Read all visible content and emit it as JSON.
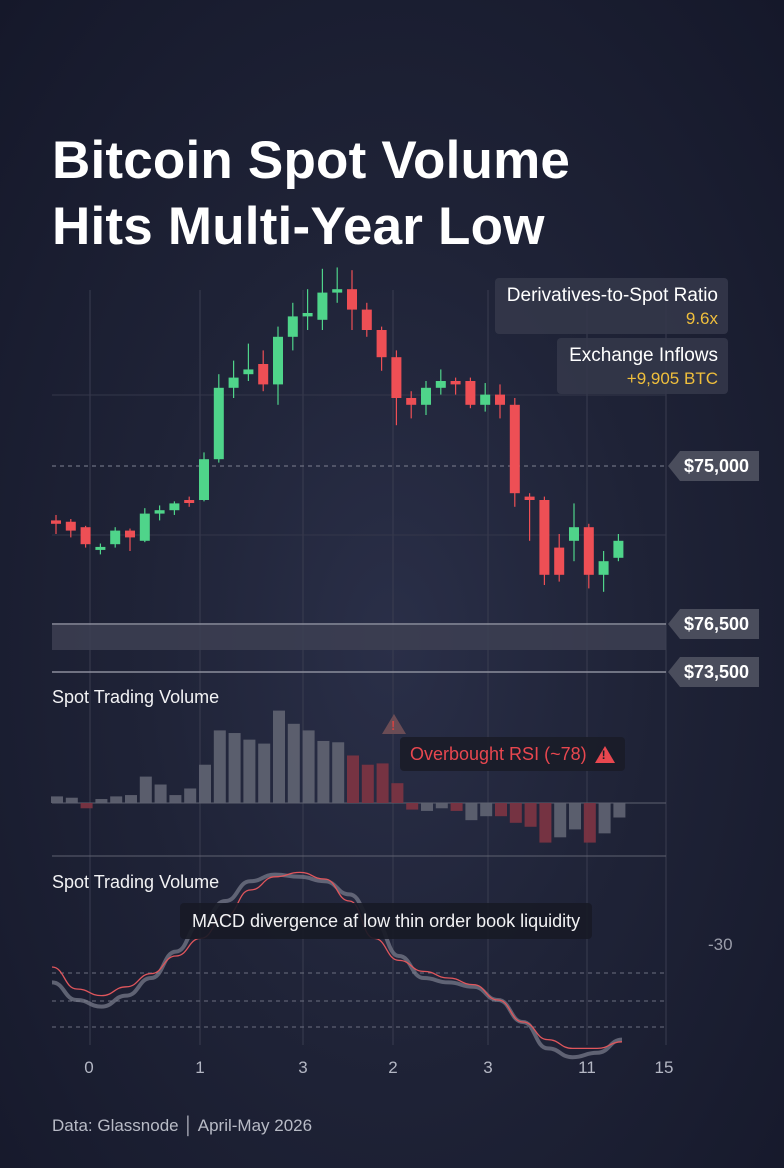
{
  "title_line1": "Bitcoin Spot Volume",
  "title_line2": "Hits Multi-Year Low",
  "stats": [
    {
      "label": "Derivatives-to-Spot Ratio",
      "value": "9.6x"
    },
    {
      "label": "Exchange Inflows",
      "value": "+9,905 BTC"
    }
  ],
  "price_labels": [
    "$75,000",
    "$76,500",
    "$73,500"
  ],
  "volume_label": "Spot Trading Volume",
  "rsi_callout": "Overbought RSI (~78)",
  "macd_label": "Spot Trading Volume",
  "macd_callout": "MACD divergence af low thin order book liquidity",
  "macd_side_label": "-30",
  "x_ticks": [
    "0",
    "1",
    "3",
    "2",
    "3",
    "11",
    "15"
  ],
  "footer": "Data: Glassnode │ April-May 2026",
  "colors": {
    "up": "#4fd48a",
    "down": "#ee4f55",
    "accent_yellow": "#f0bf3c",
    "volume_gray": "#5e6170",
    "volume_red": "#7a3442"
  },
  "chart_data": [
    {
      "type": "candlestick",
      "title": "Bitcoin Spot Volume Hits Multi-Year Low",
      "price_levels": {
        "high_label": "$75,000",
        "range_band_label": "$76,500",
        "low_label": "$73,500"
      },
      "candles": [
        {
          "o": 74.2,
          "c": 74.15,
          "h": 74.28,
          "l": 74.0
        },
        {
          "o": 74.18,
          "c": 74.05,
          "h": 74.22,
          "l": 73.95
        },
        {
          "o": 74.1,
          "c": 73.85,
          "h": 74.12,
          "l": 73.8
        },
        {
          "o": 73.8,
          "c": 73.81,
          "h": 73.86,
          "l": 73.7
        },
        {
          "o": 73.85,
          "c": 74.05,
          "h": 74.1,
          "l": 73.8
        },
        {
          "o": 74.05,
          "c": 73.95,
          "h": 74.08,
          "l": 73.75
        },
        {
          "o": 73.9,
          "c": 74.3,
          "h": 74.38,
          "l": 73.88
        },
        {
          "o": 74.3,
          "c": 74.35,
          "h": 74.42,
          "l": 74.2
        },
        {
          "o": 74.35,
          "c": 74.45,
          "h": 74.48,
          "l": 74.28
        },
        {
          "o": 74.5,
          "c": 74.48,
          "h": 74.55,
          "l": 74.4
        },
        {
          "o": 74.5,
          "c": 75.1,
          "h": 75.2,
          "l": 74.48
        },
        {
          "o": 75.1,
          "c": 76.15,
          "h": 76.35,
          "l": 75.05
        },
        {
          "o": 76.15,
          "c": 76.3,
          "h": 76.55,
          "l": 76.0
        },
        {
          "o": 76.35,
          "c": 76.42,
          "h": 76.8,
          "l": 76.25
        },
        {
          "o": 76.5,
          "c": 76.2,
          "h": 76.7,
          "l": 76.1
        },
        {
          "o": 76.2,
          "c": 76.9,
          "h": 77.05,
          "l": 75.9
        },
        {
          "o": 76.9,
          "c": 77.2,
          "h": 77.4,
          "l": 76.7
        },
        {
          "o": 77.2,
          "c": 77.25,
          "h": 77.6,
          "l": 77.0
        },
        {
          "o": 77.15,
          "c": 77.55,
          "h": 77.9,
          "l": 77.0
        },
        {
          "o": 77.55,
          "c": 77.6,
          "h": 77.92,
          "l": 77.4
        },
        {
          "o": 77.6,
          "c": 77.3,
          "h": 77.88,
          "l": 77.0
        },
        {
          "o": 77.3,
          "c": 77.0,
          "h": 77.4,
          "l": 76.9
        },
        {
          "o": 77.0,
          "c": 76.6,
          "h": 77.05,
          "l": 76.4
        },
        {
          "o": 76.6,
          "c": 76.0,
          "h": 76.7,
          "l": 75.6
        },
        {
          "o": 76.0,
          "c": 75.9,
          "h": 76.1,
          "l": 75.7
        },
        {
          "o": 75.9,
          "c": 76.15,
          "h": 76.25,
          "l": 75.75
        },
        {
          "o": 76.15,
          "c": 76.25,
          "h": 76.42,
          "l": 76.05
        },
        {
          "o": 76.25,
          "c": 76.2,
          "h": 76.3,
          "l": 76.05
        },
        {
          "o": 76.25,
          "c": 75.9,
          "h": 76.3,
          "l": 75.85
        },
        {
          "o": 75.9,
          "c": 76.05,
          "h": 76.22,
          "l": 75.8
        },
        {
          "o": 76.05,
          "c": 75.9,
          "h": 76.2,
          "l": 75.7
        },
        {
          "o": 75.9,
          "c": 74.6,
          "h": 76.0,
          "l": 74.4
        },
        {
          "o": 74.55,
          "c": 74.5,
          "h": 74.6,
          "l": 73.9
        },
        {
          "o": 74.5,
          "c": 73.4,
          "h": 74.55,
          "l": 73.25
        },
        {
          "o": 73.8,
          "c": 73.4,
          "h": 74.0,
          "l": 73.3
        },
        {
          "o": 73.9,
          "c": 74.1,
          "h": 74.45,
          "l": 73.6
        },
        {
          "o": 74.1,
          "c": 73.4,
          "h": 74.15,
          "l": 73.2
        },
        {
          "o": 73.4,
          "c": 73.6,
          "h": 73.75,
          "l": 73.15
        },
        {
          "o": 73.65,
          "c": 73.9,
          "h": 74.0,
          "l": 73.6
        }
      ]
    },
    {
      "type": "bar",
      "title": "Spot Trading Volume",
      "values": [
        0.5,
        0.4,
        -0.4,
        0.3,
        0.5,
        0.6,
        2.0,
        1.4,
        0.6,
        1.1,
        2.9,
        5.5,
        5.3,
        4.8,
        4.5,
        7.0,
        6.0,
        5.5,
        4.7,
        4.6,
        3.6,
        2.9,
        3.0,
        1.5,
        -0.5,
        -0.6,
        -0.4,
        -0.6,
        -1.3,
        -1.0,
        -1.0,
        -1.5,
        -1.8,
        -3.0,
        -2.6,
        -2.0,
        -3.0,
        -2.3,
        -1.1
      ],
      "colors_by_bar": [
        "gray",
        "gray",
        "red",
        "gray",
        "gray",
        "gray",
        "gray",
        "gray",
        "gray",
        "gray",
        "gray",
        "gray",
        "gray",
        "gray",
        "gray",
        "gray",
        "gray",
        "gray",
        "gray",
        "gray",
        "red",
        "red",
        "red",
        "red",
        "red",
        "gray",
        "gray",
        "red",
        "gray",
        "gray",
        "red",
        "red",
        "red",
        "red",
        "gray",
        "gray",
        "red",
        "gray",
        "gray"
      ]
    },
    {
      "type": "line",
      "title": "Spot Trading Volume",
      "series": [
        {
          "color": "#7c7f8e",
          "values": [
            -32,
            -40,
            -43,
            -38,
            -30,
            -18,
            -5,
            5,
            14,
            17,
            16,
            14,
            8,
            -4,
            -20,
            -30,
            -32,
            -34,
            -40,
            -50,
            -62,
            -66,
            -64,
            -58
          ]
        },
        {
          "color": "#e0565c",
          "values": [
            -25,
            -35,
            -38,
            -34,
            -28,
            -20,
            -12,
            -2,
            10,
            16,
            18,
            15,
            5,
            -12,
            -22,
            -27,
            -30,
            -33,
            -40,
            -50,
            -58,
            -62,
            -62,
            -59
          ]
        }
      ]
    }
  ]
}
